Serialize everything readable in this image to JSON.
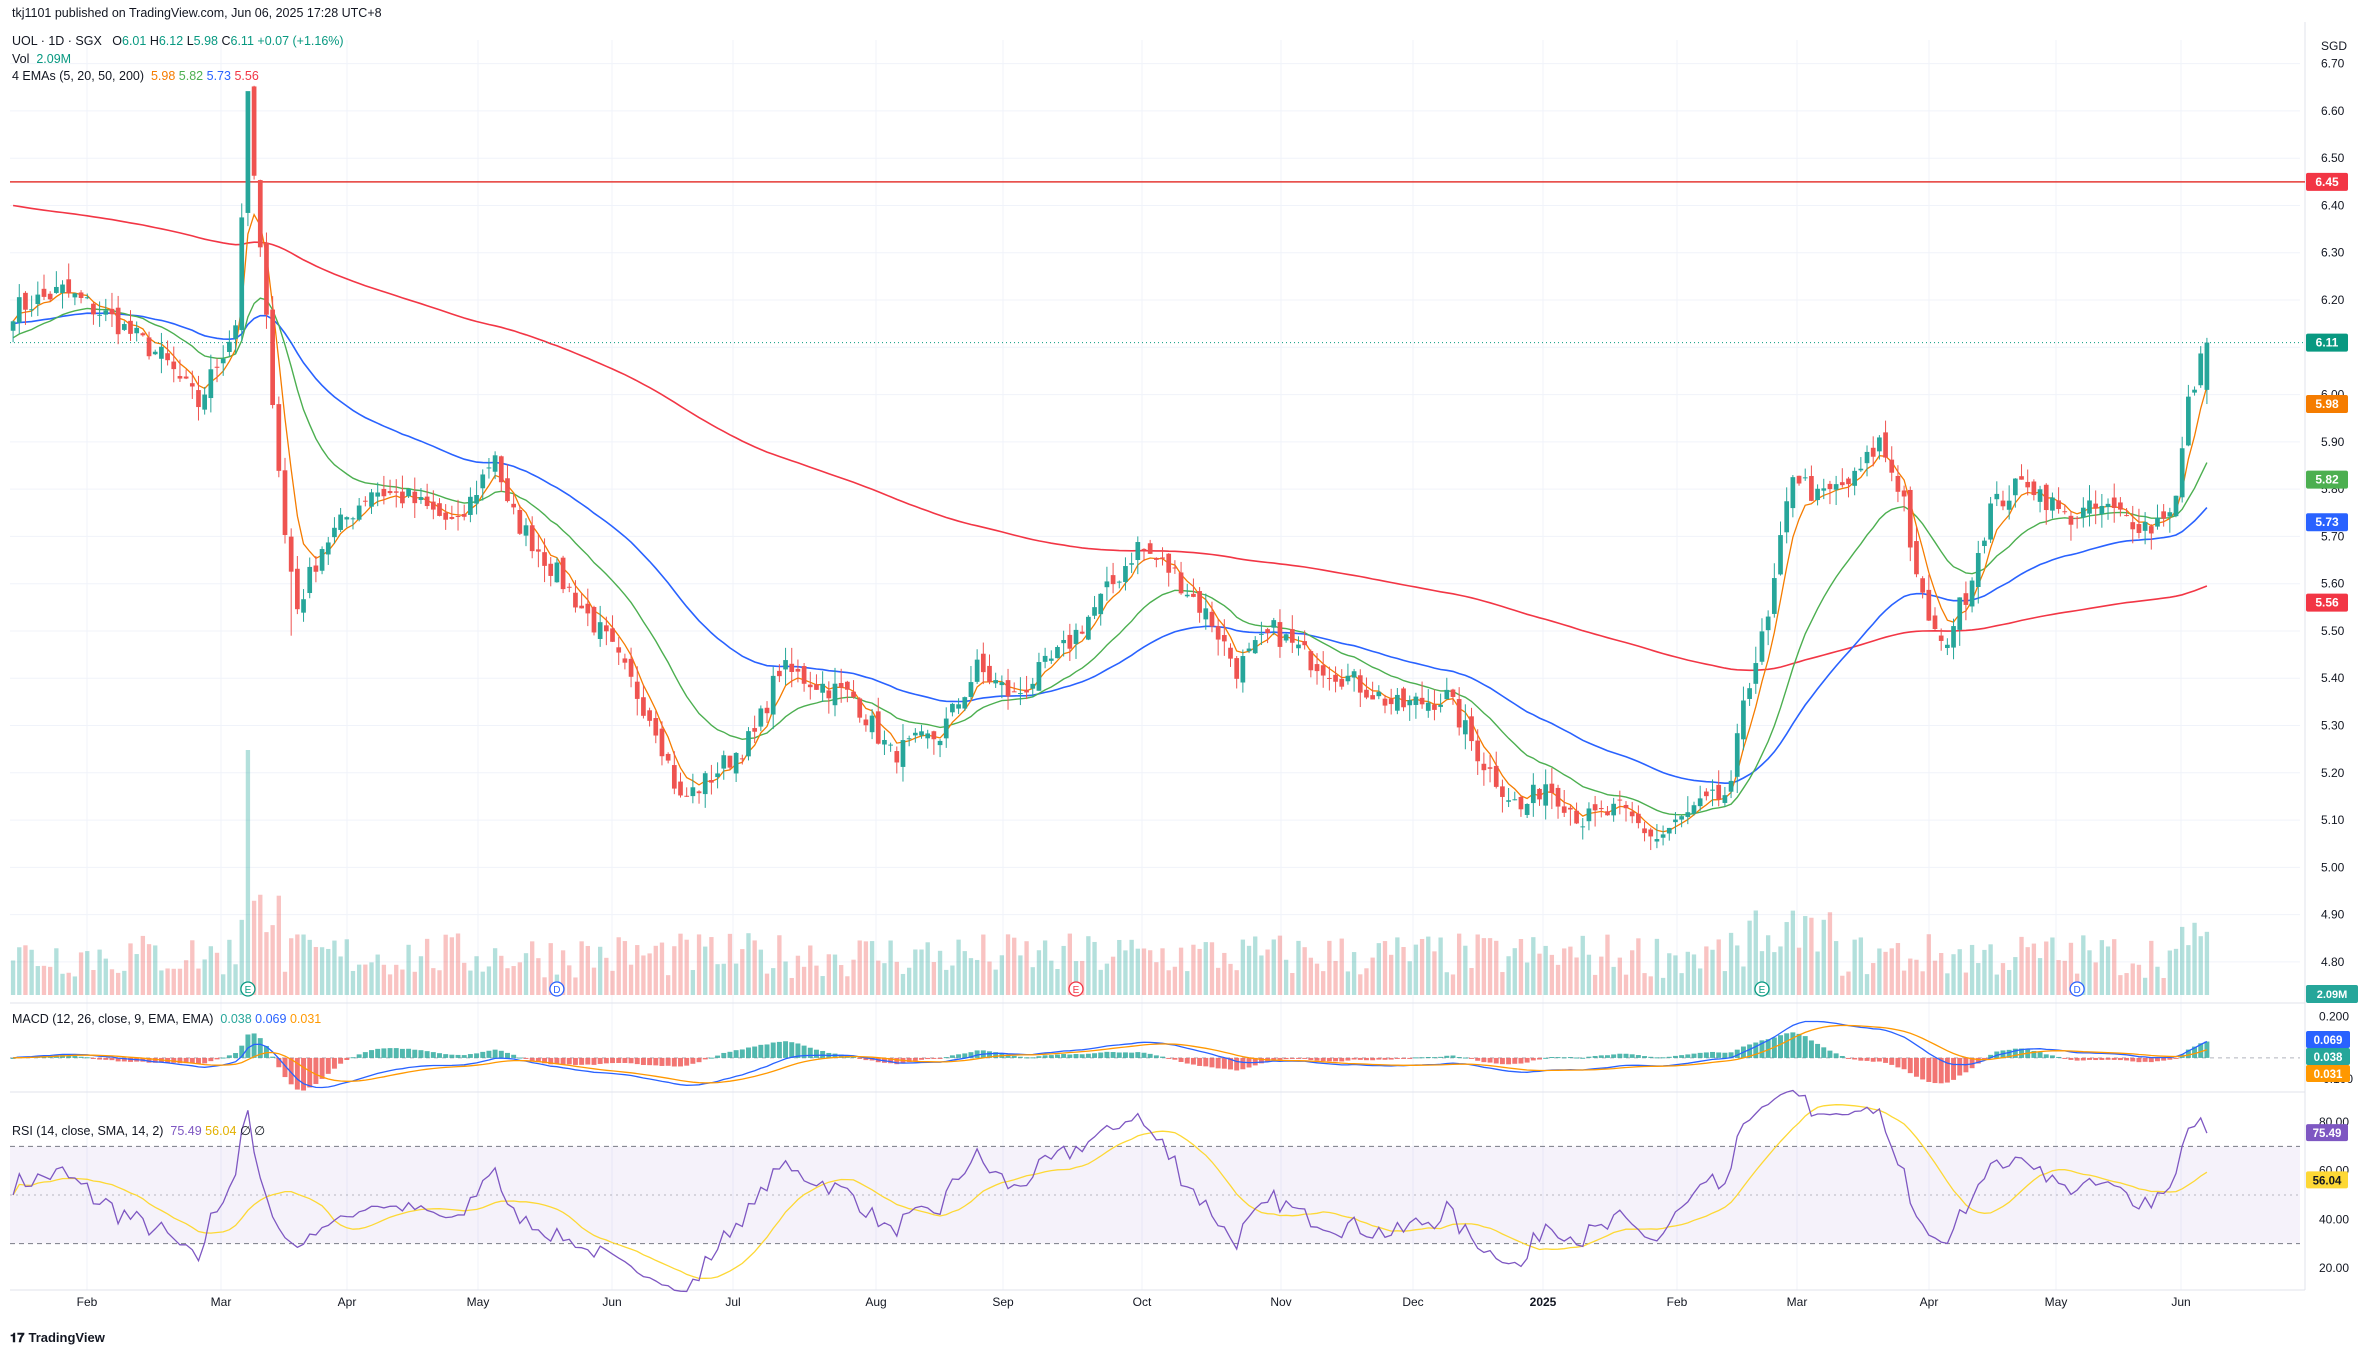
{
  "header": {
    "published": "tkj1101 published on TradingView.com, Jun 06, 2025 17:28 UTC+8",
    "symbol_line": {
      "symbol": "UOL · 1D · SGX",
      "o_label": "O",
      "o": "6.01",
      "h_label": "H",
      "h": "6.12",
      "l_label": "L",
      "l": "5.98",
      "c_label": "C",
      "c": "6.11",
      "change": "+0.07 (+1.16%)"
    },
    "vol_label": "Vol",
    "vol_value": "2.09M",
    "ema_label": "4 EMAs (5, 20, 50, 200)",
    "ema_values": [
      "5.98",
      "5.82",
      "5.73",
      "5.56"
    ],
    "macd_label": "MACD (12, 26, close, 9, EMA, EMA)",
    "macd_values": [
      "0.038",
      "0.069",
      "0.031"
    ],
    "rsi_label": "RSI (14, close, SMA, 14, 2)",
    "rsi_values": [
      "75.49",
      "56.04"
    ],
    "rsi_extra": "∅ ∅",
    "brand": "TradingView"
  },
  "colors": {
    "up": "#26a69a",
    "down": "#ef5350",
    "ema5": "#f57c00",
    "ema20": "#4caf50",
    "ema50": "#2962ff",
    "ema200": "#f23645",
    "resistance": "#e53935",
    "rsi": "#7e57c2",
    "rsi_ma": "#fdd835",
    "macd": "#2962ff",
    "signal": "#ff9800"
  },
  "chart_data": {
    "type": "candlestick",
    "symbol": "UOL",
    "interval": "1D",
    "exchange": "SGX",
    "currency": "SGD",
    "price_axis": {
      "label": "SGD",
      "ticks": [
        "6.70",
        "6.60",
        "6.50",
        "6.40",
        "6.30",
        "6.20",
        "6.10",
        "6.00",
        "5.90",
        "5.80",
        "5.70",
        "5.60",
        "5.50",
        "5.40",
        "5.30",
        "5.20",
        "5.10",
        "5.00",
        "4.90",
        "4.80"
      ],
      "range": [
        4.73,
        6.75
      ]
    },
    "time_axis": [
      "Feb",
      "Mar",
      "Apr",
      "May",
      "Jun",
      "Jul",
      "Aug",
      "Sep",
      "Oct",
      "Nov",
      "Dec",
      "2025",
      "Feb",
      "Mar",
      "Apr",
      "May",
      "Jun"
    ],
    "horizontal_line": 6.45,
    "price_badges": [
      {
        "label": "6.45",
        "value": 6.45,
        "color": "#f23645"
      },
      {
        "label": "6.11",
        "value": 6.11,
        "color": "#089981"
      },
      {
        "label": "5.98",
        "value": 5.98,
        "color": "#f57c00"
      },
      {
        "label": "5.82",
        "value": 5.82,
        "color": "#4caf50"
      },
      {
        "label": "5.73",
        "value": 5.73,
        "color": "#2962ff"
      },
      {
        "label": "5.56",
        "value": 5.56,
        "color": "#f23645"
      }
    ],
    "close_anchors": [
      [
        0,
        6.18
      ],
      [
        8,
        6.22
      ],
      [
        16,
        6.16
      ],
      [
        24,
        6.08
      ],
      [
        30,
        5.98
      ],
      [
        36,
        6.15
      ],
      [
        38,
        6.62
      ],
      [
        40,
        6.3
      ],
      [
        44,
        5.7
      ],
      [
        46,
        5.55
      ],
      [
        50,
        5.68
      ],
      [
        58,
        5.8
      ],
      [
        64,
        5.78
      ],
      [
        72,
        5.72
      ],
      [
        78,
        5.88
      ],
      [
        80,
        5.76
      ],
      [
        88,
        5.62
      ],
      [
        96,
        5.48
      ],
      [
        104,
        5.3
      ],
      [
        108,
        5.14
      ],
      [
        112,
        5.18
      ],
      [
        120,
        5.28
      ],
      [
        124,
        5.42
      ],
      [
        128,
        5.4
      ],
      [
        136,
        5.36
      ],
      [
        142,
        5.24
      ],
      [
        150,
        5.28
      ],
      [
        156,
        5.42
      ],
      [
        162,
        5.36
      ],
      [
        170,
        5.46
      ],
      [
        178,
        5.6
      ],
      [
        182,
        5.68
      ],
      [
        188,
        5.62
      ],
      [
        194,
        5.52
      ],
      [
        198,
        5.42
      ],
      [
        204,
        5.5
      ],
      [
        210,
        5.44
      ],
      [
        216,
        5.4
      ],
      [
        224,
        5.34
      ],
      [
        232,
        5.36
      ],
      [
        238,
        5.22
      ],
      [
        244,
        5.12
      ],
      [
        248,
        5.18
      ],
      [
        254,
        5.1
      ],
      [
        260,
        5.12
      ],
      [
        266,
        5.06
      ],
      [
        272,
        5.12
      ],
      [
        278,
        5.16
      ],
      [
        280,
        5.36
      ],
      [
        284,
        5.52
      ],
      [
        288,
        5.84
      ],
      [
        292,
        5.78
      ],
      [
        298,
        5.82
      ],
      [
        302,
        5.9
      ],
      [
        306,
        5.78
      ],
      [
        308,
        5.6
      ],
      [
        312,
        5.46
      ],
      [
        316,
        5.58
      ],
      [
        320,
        5.76
      ],
      [
        326,
        5.82
      ],
      [
        332,
        5.74
      ],
      [
        338,
        5.76
      ],
      [
        346,
        5.72
      ],
      [
        350,
        5.78
      ],
      [
        352,
        5.98
      ],
      [
        355,
        6.11
      ]
    ],
    "volume": {
      "last": "2.09M",
      "spike_day": 38,
      "spike_value": 8.9
    },
    "events": [
      {
        "label": "E",
        "day": 38
      },
      {
        "label": "D",
        "day": 88
      },
      {
        "label": "E",
        "day": 172
      },
      {
        "label": "E",
        "day": 283
      },
      {
        "label": "D",
        "day": 334
      }
    ],
    "macd": {
      "label": "MACD (12, 26, close, 9, EMA, EMA)",
      "macd": 0.069,
      "histogram": 0.038,
      "signal": 0.031,
      "ticks": [
        "0.200",
        "-0.100"
      ],
      "range": [
        -0.13,
        0.23
      ]
    },
    "rsi": {
      "label": "RSI (14, close, SMA, 14, 2)",
      "rsi": 75.49,
      "sma": 56.04,
      "ticks": [
        "80.00",
        "60.00",
        "40.00",
        "20.00"
      ],
      "range": [
        15,
        85
      ],
      "bands": [
        70,
        30
      ]
    }
  }
}
